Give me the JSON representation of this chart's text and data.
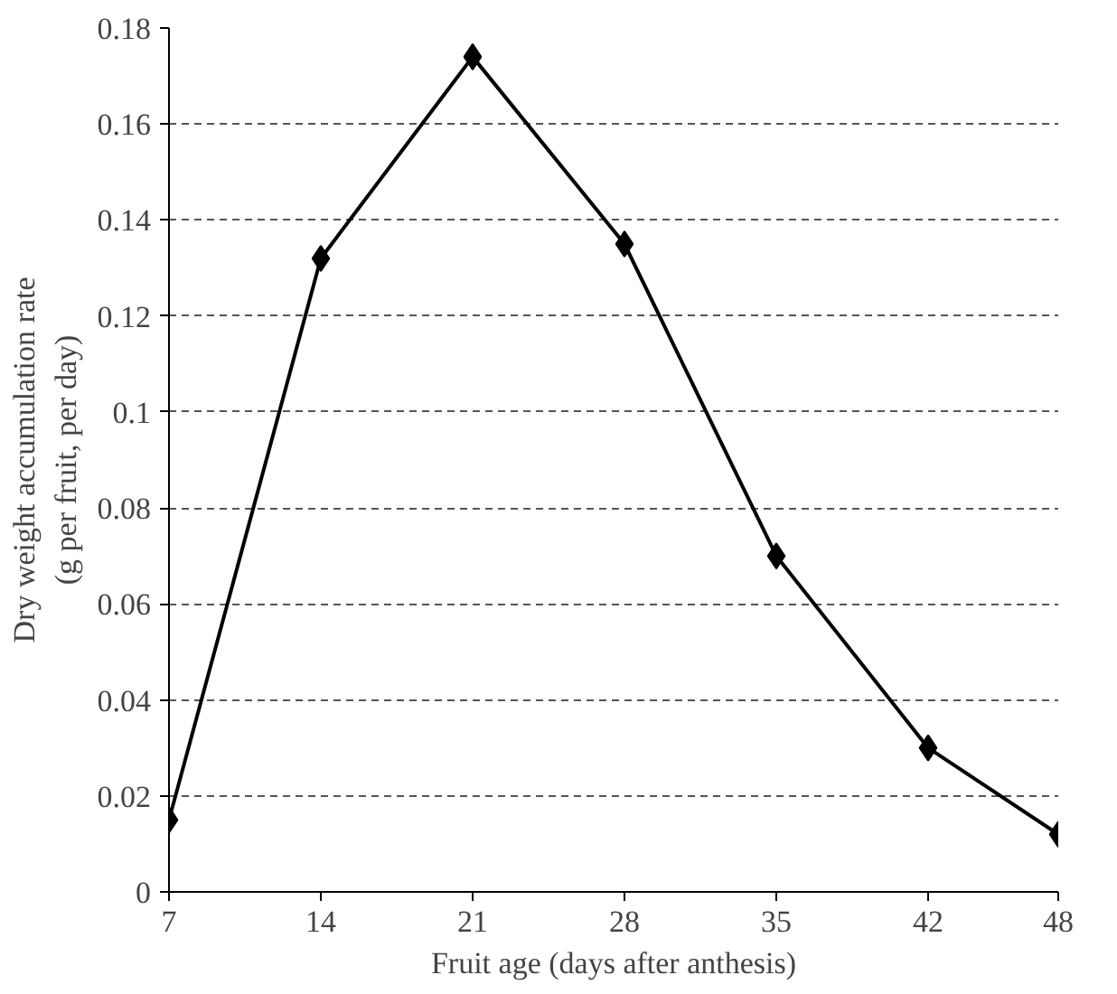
{
  "chart_data": {
    "type": "line",
    "xlabel": "Fruit age (days after anthesis)",
    "ylabel": "Dry weight accumulation rate\n(g per fruit, per day)",
    "x": [
      7,
      14,
      21,
      28,
      35,
      42,
      48
    ],
    "series": [
      {
        "color": "#000000",
        "values": [
          0.015,
          0.132,
          0.174,
          0.135,
          0.07,
          0.03,
          0.012
        ]
      }
    ],
    "xlim": [
      7,
      48
    ],
    "xticks": [
      7,
      14,
      21,
      28,
      35,
      42,
      48
    ],
    "ylim": [
      0,
      0.18
    ],
    "yticks": [
      0,
      {
        "value": 0.02,
        "label": "0.02"
      },
      {
        "value": 0.04,
        "label": "0.04"
      },
      {
        "value": 0.06,
        "label": "0.06"
      },
      {
        "value": 0.08,
        "label": "0.08"
      },
      {
        "value": 0.1,
        "label": "0.1"
      },
      {
        "value": 0.12,
        "label": "0.12"
      },
      {
        "value": 0.14,
        "label": "0.14"
      },
      {
        "value": 0.16,
        "label": "0.16"
      },
      {
        "value": 0.18,
        "label": "0.18"
      }
    ],
    "grid": "y",
    "marker": "diamond",
    "line_style": "solid"
  }
}
